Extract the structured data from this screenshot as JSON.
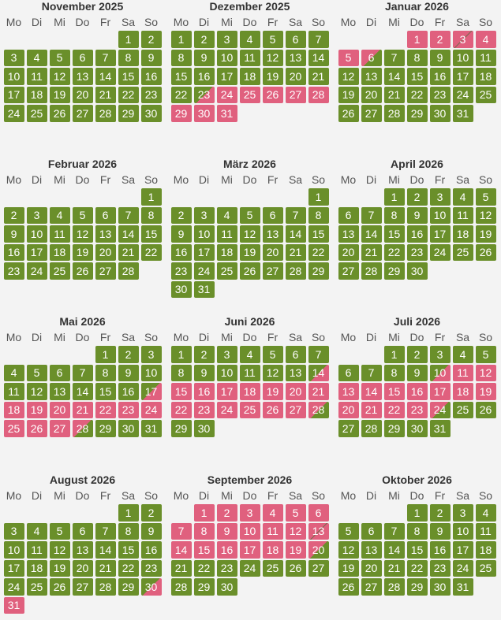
{
  "weekday_labels": [
    "Mo",
    "Di",
    "Mi",
    "Do",
    "Fr",
    "Sa",
    "So"
  ],
  "legend": {
    "free_color": "#6a8f2a",
    "booked_color": "#e0607e"
  },
  "months": [
    {
      "title": "November 2025",
      "offset": 5,
      "days": 30,
      "booked": [],
      "checkin": [],
      "checkout": [],
      "turnover": []
    },
    {
      "title": "Dezember 2025",
      "offset": 0,
      "days": 31,
      "booked": [
        24,
        25,
        26,
        27,
        28,
        29,
        30,
        31
      ],
      "checkin": [
        23
      ],
      "checkout": [],
      "turnover": []
    },
    {
      "title": "Januar 2026",
      "offset": 3,
      "days": 31,
      "booked": [
        1,
        2,
        4,
        5
      ],
      "checkin": [],
      "checkout": [
        6
      ],
      "turnover": [
        3
      ]
    },
    {
      "title": "Februar 2026",
      "offset": 6,
      "days": 28,
      "booked": [],
      "checkin": [],
      "checkout": [],
      "turnover": []
    },
    {
      "title": "März 2026",
      "offset": 6,
      "days": 31,
      "booked": [],
      "checkin": [],
      "checkout": [],
      "turnover": []
    },
    {
      "title": "April 2026",
      "offset": 2,
      "days": 30,
      "booked": [],
      "checkin": [],
      "checkout": [],
      "turnover": []
    },
    {
      "title": "Mai 2026",
      "offset": 4,
      "days": 31,
      "booked": [
        18,
        19,
        20,
        21,
        22,
        23,
        24,
        25,
        26,
        27
      ],
      "checkin": [
        17
      ],
      "checkout": [
        28
      ],
      "turnover": []
    },
    {
      "title": "Juni 2026",
      "offset": 0,
      "days": 30,
      "booked": [
        15,
        16,
        17,
        18,
        19,
        20,
        21,
        22,
        23,
        24,
        25,
        26,
        27
      ],
      "checkin": [
        14
      ],
      "checkout": [
        28
      ],
      "turnover": []
    },
    {
      "title": "Juli 2026",
      "offset": 2,
      "days": 31,
      "booked": [
        11,
        12,
        13,
        14,
        15,
        16,
        17,
        18,
        19,
        20,
        21,
        22,
        23
      ],
      "checkin": [
        10
      ],
      "checkout": [
        24
      ],
      "turnover": []
    },
    {
      "title": "August 2026",
      "offset": 5,
      "days": 31,
      "booked": [
        31
      ],
      "checkin": [
        30
      ],
      "checkout": [],
      "turnover": []
    },
    {
      "title": "September 2026",
      "offset": 1,
      "days": 30,
      "booked": [
        1,
        2,
        3,
        4,
        5,
        6,
        7,
        8,
        9,
        10,
        11,
        12,
        14,
        15,
        16,
        17,
        18,
        19
      ],
      "checkin": [],
      "checkout": [
        20
      ],
      "turnover": [
        13
      ]
    },
    {
      "title": "Oktober 2026",
      "offset": 3,
      "days": 31,
      "booked": [],
      "checkin": [],
      "checkout": [],
      "turnover": []
    }
  ]
}
